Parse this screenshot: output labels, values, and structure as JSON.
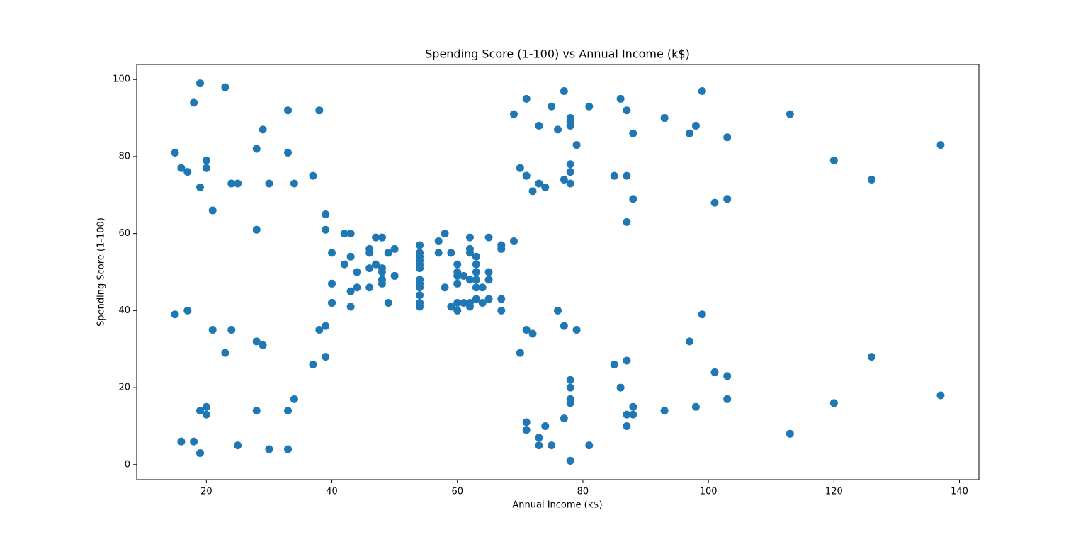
{
  "chart_data": {
    "type": "scatter",
    "title": "Spending Score (1-100) vs Annual Income (k$)",
    "x_label": "Annual Income (k$)",
    "y_label": "Spending Score (1-100)",
    "color": "#1f77b4",
    "x": [
      15,
      15,
      16,
      16,
      17,
      17,
      18,
      18,
      19,
      19,
      19,
      19,
      20,
      20,
      20,
      20,
      21,
      21,
      23,
      23,
      24,
      24,
      25,
      25,
      28,
      28,
      28,
      28,
      29,
      29,
      30,
      30,
      33,
      33,
      33,
      33,
      34,
      34,
      37,
      37,
      38,
      38,
      39,
      39,
      39,
      39,
      40,
      40,
      40,
      40,
      42,
      42,
      43,
      43,
      43,
      43,
      44,
      44,
      46,
      46,
      46,
      46,
      47,
      47,
      48,
      48,
      48,
      48,
      48,
      48,
      49,
      49,
      50,
      50,
      54,
      54,
      54,
      54,
      54,
      54,
      54,
      54,
      54,
      54,
      54,
      54,
      57,
      57,
      58,
      58,
      59,
      59,
      60,
      60,
      60,
      60,
      60,
      60,
      61,
      61,
      62,
      62,
      62,
      62,
      62,
      62,
      63,
      63,
      63,
      63,
      63,
      63,
      64,
      64,
      65,
      65,
      65,
      65,
      67,
      67,
      67,
      67,
      69,
      69,
      70,
      70,
      71,
      71,
      71,
      71,
      71,
      71,
      72,
      72,
      73,
      73,
      73,
      73,
      74,
      74,
      75,
      75,
      76,
      76,
      77,
      77,
      77,
      77,
      78,
      78,
      78,
      78,
      78,
      78,
      78,
      78,
      78,
      78,
      78,
      78,
      79,
      79,
      81,
      81,
      85,
      85,
      86,
      86,
      87,
      87,
      87,
      87,
      87,
      87,
      88,
      88,
      88,
      88,
      93,
      93,
      97,
      97,
      98,
      98,
      99,
      99,
      101,
      101,
      103,
      103,
      103,
      103,
      113,
      113,
      120,
      120,
      126,
      126,
      137,
      137
    ],
    "y": [
      39,
      81,
      6,
      77,
      40,
      76,
      6,
      94,
      3,
      72,
      14,
      99,
      15,
      77,
      13,
      79,
      35,
      66,
      29,
      98,
      35,
      73,
      5,
      73,
      14,
      82,
      32,
      61,
      31,
      87,
      4,
      73,
      4,
      92,
      14,
      81,
      17,
      73,
      26,
      75,
      35,
      92,
      36,
      61,
      28,
      65,
      55,
      47,
      42,
      42,
      52,
      60,
      54,
      60,
      45,
      41,
      50,
      46,
      51,
      46,
      56,
      55,
      52,
      59,
      51,
      59,
      50,
      48,
      59,
      47,
      55,
      42,
      49,
      56,
      47,
      54,
      53,
      48,
      52,
      42,
      51,
      55,
      41,
      44,
      57,
      46,
      58,
      55,
      60,
      46,
      55,
      41,
      49,
      40,
      42,
      52,
      47,
      50,
      42,
      49,
      41,
      48,
      59,
      55,
      56,
      42,
      50,
      46,
      43,
      48,
      52,
      54,
      42,
      46,
      48,
      50,
      43,
      59,
      43,
      57,
      56,
      40,
      58,
      91,
      29,
      77,
      35,
      95,
      11,
      75,
      9,
      75,
      34,
      71,
      5,
      88,
      7,
      73,
      10,
      72,
      5,
      93,
      40,
      87,
      12,
      97,
      36,
      74,
      22,
      90,
      17,
      88,
      20,
      76,
      16,
      89,
      1,
      78,
      1,
      73,
      35,
      83,
      5,
      93,
      26,
      75,
      20,
      95,
      27,
      63,
      13,
      75,
      10,
      92,
      13,
      86,
      15,
      69,
      14,
      90,
      32,
      86,
      15,
      88,
      39,
      97,
      24,
      68,
      17,
      85,
      23,
      69,
      8,
      91,
      16,
      79,
      28,
      74,
      18,
      83
    ],
    "xlim": [
      8.9,
      143.1
    ],
    "xticks": [
      20,
      40,
      60,
      80,
      100,
      120,
      140
    ],
    "ylim": [
      -3.9,
      103.9
    ],
    "yticks": [
      0,
      20,
      40,
      60,
      80,
      100
    ]
  }
}
